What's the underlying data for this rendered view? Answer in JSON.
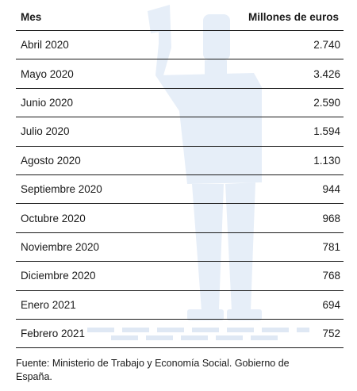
{
  "table": {
    "headers": [
      "Mes",
      "Millones de euros"
    ],
    "rows": [
      [
        "Abril 2020",
        "2.740"
      ],
      [
        "Mayo 2020",
        "3.426"
      ],
      [
        "Junio 2020",
        "2.590"
      ],
      [
        "Julio 2020",
        "1.594"
      ],
      [
        "Agosto 2020",
        "1.130"
      ],
      [
        "Septiembre 2020",
        "944"
      ],
      [
        "Octubre 2020",
        "968"
      ],
      [
        "Noviembre 2020",
        "781"
      ],
      [
        "Diciembre 2020",
        "768"
      ],
      [
        "Enero 2021",
        "694"
      ],
      [
        "Febrero 2021",
        "752"
      ]
    ]
  },
  "source": "Fuente: Ministerio de Trabajo y Economía Social. Gobierno de España.",
  "colors": {
    "text": "#1a1a1a",
    "watermark": "#e4ecf7"
  },
  "watermark_icon": "raised-hand-person-illustration"
}
